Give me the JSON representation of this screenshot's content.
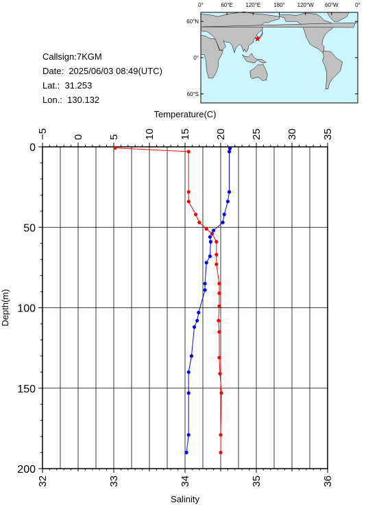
{
  "station": {
    "callsign_label": "Callsign:",
    "callsign": "7KGM",
    "date_label": "Date:",
    "date": "2025/06/03 08:49(UTC)",
    "lat_label": "Lat.:",
    "lat": "31.253",
    "lon_label": "Lon.:",
    "lon": "130.132"
  },
  "map": {
    "top_labels": [
      "0°",
      "60°E",
      "120°E",
      "180°",
      "120°W",
      "60°W",
      "0°"
    ],
    "left_labels": [
      "60°N",
      "0°",
      "60°S"
    ],
    "ocean_color": "#ccf5ff",
    "land_color": "#c0c0c0",
    "marker_color": "#ff0000",
    "marker_lon": 130.132,
    "marker_lat": 31.253
  },
  "chart_data": {
    "type": "line",
    "top_axis_label": "Temperature(C)",
    "bottom_axis_label": "Salinity",
    "left_axis_label": "Depth(m)",
    "temperature_range": [
      -5,
      35
    ],
    "temperature_ticks": [
      "−5",
      "0",
      "5",
      "10",
      "15",
      "20",
      "25",
      "30",
      "35"
    ],
    "salinity_range": [
      32,
      36
    ],
    "salinity_ticks": [
      "32",
      "33",
      "34",
      "35",
      "36"
    ],
    "depth_range": [
      0,
      200
    ],
    "depth_ticks": [
      "0",
      "50",
      "100",
      "150",
      "200"
    ],
    "grid": true,
    "series": [
      {
        "color": "#ff0000",
        "axis": "temperature",
        "points": [
          {
            "value": 5.2,
            "depth": 0.7
          },
          {
            "value": 15.5,
            "depth": 3
          },
          {
            "value": 15.5,
            "depth": 28
          },
          {
            "value": 15.5,
            "depth": 34
          },
          {
            "value": 16.5,
            "depth": 42
          },
          {
            "value": 17.0,
            "depth": 47
          },
          {
            "value": 18.0,
            "depth": 51
          },
          {
            "value": 18.8,
            "depth": 54
          },
          {
            "value": 19.4,
            "depth": 59
          },
          {
            "value": 19.4,
            "depth": 67
          },
          {
            "value": 19.4,
            "depth": 73
          },
          {
            "value": 19.8,
            "depth": 85
          },
          {
            "value": 19.8,
            "depth": 91
          },
          {
            "value": 19.8,
            "depth": 99
          },
          {
            "value": 19.7,
            "depth": 108
          },
          {
            "value": 19.8,
            "depth": 115
          },
          {
            "value": 19.8,
            "depth": 131
          },
          {
            "value": 19.9,
            "depth": 141
          },
          {
            "value": 20.1,
            "depth": 153
          },
          {
            "value": 20.0,
            "depth": 179
          },
          {
            "value": 20.0,
            "depth": 190
          }
        ]
      },
      {
        "color": "#0000ff",
        "axis": "salinity",
        "points": [
          {
            "value": 34.63,
            "depth": 1
          },
          {
            "value": 34.62,
            "depth": 3
          },
          {
            "value": 34.62,
            "depth": 28
          },
          {
            "value": 34.6,
            "depth": 34
          },
          {
            "value": 34.55,
            "depth": 42
          },
          {
            "value": 34.53,
            "depth": 47
          },
          {
            "value": 34.4,
            "depth": 52
          },
          {
            "value": 34.35,
            "depth": 56
          },
          {
            "value": 34.36,
            "depth": 59
          },
          {
            "value": 34.35,
            "depth": 68
          },
          {
            "value": 34.3,
            "depth": 72
          },
          {
            "value": 34.28,
            "depth": 85
          },
          {
            "value": 34.28,
            "depth": 89
          },
          {
            "value": 34.19,
            "depth": 103
          },
          {
            "value": 34.17,
            "depth": 108
          },
          {
            "value": 34.13,
            "depth": 112
          },
          {
            "value": 34.09,
            "depth": 130
          },
          {
            "value": 34.05,
            "depth": 140
          },
          {
            "value": 34.05,
            "depth": 153
          },
          {
            "value": 34.05,
            "depth": 179
          },
          {
            "value": 34.02,
            "depth": 190
          }
        ]
      }
    ]
  }
}
